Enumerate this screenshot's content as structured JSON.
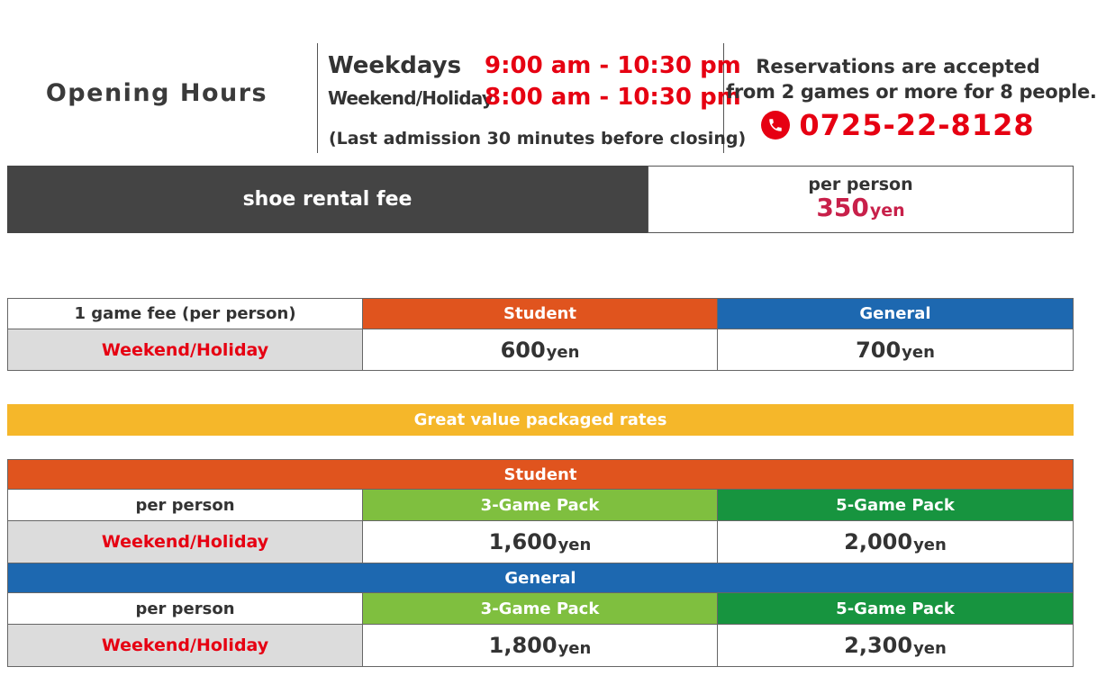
{
  "header": {
    "title": "Opening Hours",
    "weekdays_label": "Weekdays",
    "weekdays_time": "9:00 am - 10:30 pm",
    "weekend_label": "Weekend/Holiday",
    "weekend_time": "8:00 am - 10:30 pm",
    "last_admission": "(Last admission 30 minutes before closing)",
    "reservation_line1": "Reservations are accepted",
    "reservation_line2": "from 2 games or more for 8 people.",
    "phone": "0725-22-8128",
    "phone_icon": "phone-icon"
  },
  "shoe_rental": {
    "label": "shoe rental fee",
    "per": "per person",
    "price": "350",
    "unit": "yen"
  },
  "single_game": {
    "header_label": "1 game fee (per person)",
    "col_student": "Student",
    "col_general": "General",
    "row_label": "Weekend/Holiday",
    "student_price": "600",
    "general_price": "700",
    "unit": "yen"
  },
  "packages": {
    "banner": "Great value packaged rates",
    "student": {
      "band": "Student",
      "per": "per person",
      "pack3": "3-Game Pack",
      "pack5": "5-Game Pack",
      "row_label": "Weekend/Holiday",
      "price3": "1,600",
      "price5": "2,000",
      "unit": "yen"
    },
    "general": {
      "band": "General",
      "per": "per person",
      "pack3": "3-Game Pack",
      "pack5": "5-Game Pack",
      "row_label": "Weekend/Holiday",
      "price3": "1,800",
      "price5": "2,300",
      "unit": "yen"
    }
  },
  "colors": {
    "red": "#e60012",
    "orange": "#e0541e",
    "blue": "#1d68b0",
    "light_green": "#7fbf3f",
    "dark_green": "#17943f",
    "yellow": "#f5b72a",
    "dark_grey": "#444444",
    "crimson": "#c8204a"
  }
}
